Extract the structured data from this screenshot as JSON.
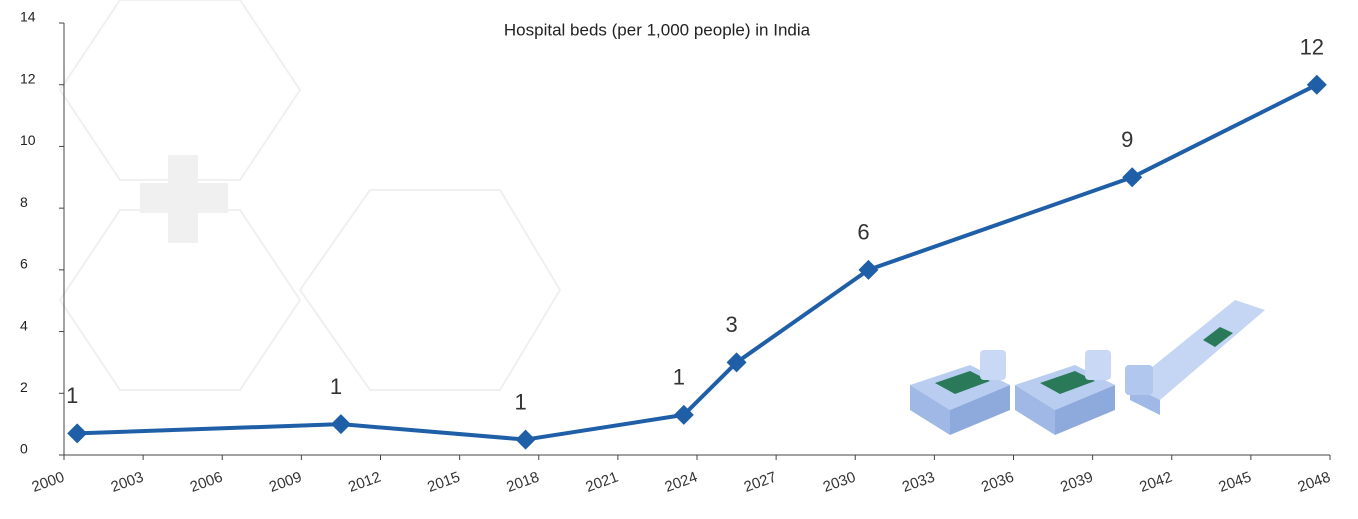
{
  "chart_data": {
    "type": "line",
    "title": "Hospital beds (per 1,000 people) in India",
    "x": [
      2000.5,
      2010.5,
      2017.5,
      2023.5,
      2025.5,
      2030.5,
      2040.5,
      2047.5
    ],
    "values": [
      0.7,
      1.0,
      0.5,
      1.3,
      3.0,
      6.0,
      9.0,
      12.0
    ],
    "value_labels": [
      "1",
      "1",
      "1",
      "1",
      "3",
      "6",
      "9",
      "12"
    ],
    "color": "#1f5fa8",
    "xlim": [
      2000,
      2048
    ],
    "xticks": [
      2000,
      2003,
      2006,
      2009,
      2012,
      2015,
      2018,
      2021,
      2024,
      2027,
      2030,
      2033,
      2036,
      2039,
      2042,
      2045,
      2048
    ],
    "ylim": [
      0,
      14
    ],
    "yticks": [
      0,
      2,
      4,
      6,
      8,
      10,
      12,
      14
    ],
    "grid": false
  }
}
